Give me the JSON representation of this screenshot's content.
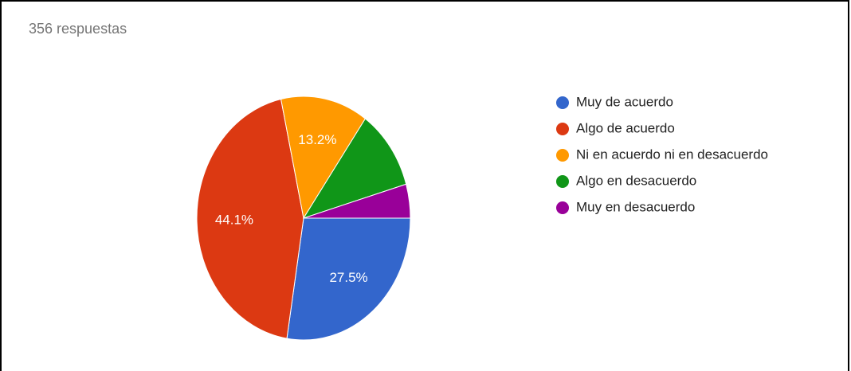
{
  "chart_data": {
    "type": "pie",
    "title": "356 respuestas",
    "categories": [
      "Muy de acuerdo",
      "Algo de acuerdo",
      "Ni en acuerdo ni en desacuerdo",
      "Algo en desacuerdo",
      "Muy en desacuerdo"
    ],
    "values": [
      27.5,
      44.1,
      13.2,
      10.7,
      4.5
    ],
    "value_labels": [
      "27.5%",
      "44.1%",
      "13.2%",
      null,
      null
    ],
    "colors": [
      "#3366cc",
      "#dc3912",
      "#ff9900",
      "#109618",
      "#990099"
    ],
    "legend": "right"
  }
}
